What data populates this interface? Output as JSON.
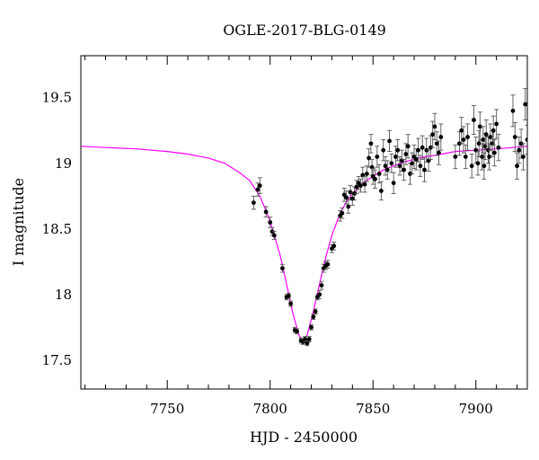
{
  "chart_data": {
    "type": "scatter",
    "title": "OGLE-2017-BLG-0149",
    "xlabel": "HJD - 2450000",
    "ylabel": "I magnitude",
    "xlim": [
      7708,
      7925
    ],
    "ylim": [
      19.82,
      17.28
    ],
    "y_inverted": true,
    "grid": false,
    "x_ticks": [
      7750,
      7800,
      7850,
      7900
    ],
    "x_tick_labels": [
      "7750",
      "7800",
      "7850",
      "7900"
    ],
    "y_ticks": [
      17.5,
      18,
      18.5,
      19,
      19.5
    ],
    "y_tick_labels": [
      "17.5",
      "18",
      "18.5",
      "19",
      "19.5"
    ],
    "colors": {
      "data": "#000000",
      "model": "#ff00ff"
    },
    "model": {
      "name": "",
      "type": "line",
      "x": [
        7708,
        7720,
        7735,
        7750,
        7760,
        7770,
        7778,
        7785,
        7790,
        7795,
        7800,
        7805,
        7808,
        7811,
        7814,
        7816,
        7818,
        7821,
        7824,
        7827,
        7830,
        7834,
        7838,
        7842,
        7846,
        7850,
        7855,
        7860,
        7865,
        7870,
        7875,
        7880,
        7890,
        7900,
        7910,
        7925
      ],
      "y": [
        19.13,
        19.12,
        19.11,
        19.09,
        19.07,
        19.04,
        19.0,
        18.93,
        18.87,
        18.75,
        18.56,
        18.29,
        18.08,
        17.86,
        17.69,
        17.64,
        17.69,
        17.87,
        18.08,
        18.28,
        18.45,
        18.62,
        18.73,
        18.8,
        18.86,
        18.9,
        18.95,
        18.98,
        19.01,
        19.03,
        19.05,
        19.06,
        19.09,
        19.1,
        19.11,
        19.13
      ]
    },
    "series": [
      {
        "name": "",
        "type": "errorbar",
        "points": [
          [
            7792,
            18.7,
            0.05
          ],
          [
            7794,
            18.8,
            0.05
          ],
          [
            7795,
            18.83,
            0.06
          ],
          [
            7798,
            18.63,
            0.04
          ],
          [
            7800,
            18.55,
            0.04
          ],
          [
            7801,
            18.48,
            0.03
          ],
          [
            7802,
            18.45,
            0.03
          ],
          [
            7806,
            18.2,
            0.03
          ],
          [
            7808,
            17.98,
            0.02
          ],
          [
            7809,
            17.99,
            0.02
          ],
          [
            7810,
            17.93,
            0.02
          ],
          [
            7812,
            17.73,
            0.02
          ],
          [
            7813,
            17.72,
            0.02
          ],
          [
            7815,
            17.65,
            0.02
          ],
          [
            7816,
            17.64,
            0.02
          ],
          [
            7817,
            17.66,
            0.02
          ],
          [
            7818,
            17.63,
            0.02
          ],
          [
            7819,
            17.66,
            0.02
          ],
          [
            7820,
            17.75,
            0.02
          ],
          [
            7821,
            17.83,
            0.02
          ],
          [
            7822,
            17.87,
            0.02
          ],
          [
            7823,
            17.98,
            0.02
          ],
          [
            7824,
            18.0,
            0.03
          ],
          [
            7825,
            18.07,
            0.03
          ],
          [
            7826,
            18.2,
            0.03
          ],
          [
            7827,
            18.22,
            0.03
          ],
          [
            7828,
            18.23,
            0.03
          ],
          [
            7830,
            18.35,
            0.03
          ],
          [
            7831,
            18.37,
            0.03
          ],
          [
            7834,
            18.6,
            0.04
          ],
          [
            7835,
            18.62,
            0.04
          ],
          [
            7836,
            18.76,
            0.05
          ],
          [
            7837,
            18.74,
            0.05
          ],
          [
            7838,
            18.67,
            0.05
          ],
          [
            7839,
            18.78,
            0.05
          ],
          [
            7840,
            18.73,
            0.05
          ],
          [
            7841,
            18.77,
            0.05
          ],
          [
            7842,
            18.82,
            0.05
          ],
          [
            7843,
            18.85,
            0.05
          ],
          [
            7844,
            18.83,
            0.05
          ],
          [
            7845,
            18.91,
            0.06
          ],
          [
            7846,
            18.84,
            0.06
          ],
          [
            7847,
            18.92,
            0.06
          ],
          [
            7848,
            19.04,
            0.07
          ],
          [
            7849,
            19.15,
            0.07
          ],
          [
            7849.5,
            18.97,
            0.06
          ],
          [
            7850,
            18.9,
            0.06
          ],
          [
            7851,
            18.88,
            0.07
          ],
          [
            7852,
            19.05,
            0.08
          ],
          [
            7853,
            18.92,
            0.07
          ],
          [
            7854,
            18.79,
            0.07
          ],
          [
            7855,
            19.1,
            0.08
          ],
          [
            7856,
            18.98,
            0.07
          ],
          [
            7857,
            18.95,
            0.07
          ],
          [
            7858,
            19.17,
            0.08
          ],
          [
            7859,
            19.0,
            0.07
          ],
          [
            7860,
            18.85,
            0.08
          ],
          [
            7861,
            19.05,
            0.08
          ],
          [
            7862,
            19.1,
            0.08
          ],
          [
            7863,
            18.98,
            0.07
          ],
          [
            7864,
            19.02,
            0.08
          ],
          [
            7865,
            18.95,
            0.08
          ],
          [
            7866,
            19.07,
            0.08
          ],
          [
            7867,
            19.13,
            0.09
          ],
          [
            7868,
            18.92,
            0.08
          ],
          [
            7869,
            19.0,
            0.08
          ],
          [
            7870,
            19.05,
            0.09
          ],
          [
            7871,
            19.03,
            0.08
          ],
          [
            7872,
            19.1,
            0.09
          ],
          [
            7873,
            18.98,
            0.08
          ],
          [
            7874,
            19.12,
            0.09
          ],
          [
            7875,
            18.95,
            0.09
          ],
          [
            7876,
            19.1,
            0.09
          ],
          [
            7877,
            19.02,
            0.08
          ],
          [
            7878,
            19.12,
            0.09
          ],
          [
            7879,
            19.22,
            0.1
          ],
          [
            7880,
            19.28,
            0.1
          ],
          [
            7881,
            19.15,
            0.09
          ],
          [
            7882,
            19.08,
            0.09
          ],
          [
            7883,
            19.2,
            0.1
          ],
          [
            7890,
            19.05,
            0.09
          ],
          [
            7892,
            19.15,
            0.09
          ],
          [
            7893,
            19.25,
            0.1
          ],
          [
            7894,
            19.18,
            0.1
          ],
          [
            7895,
            19.05,
            0.09
          ],
          [
            7896,
            19.2,
            0.1
          ],
          [
            7898,
            18.98,
            0.09
          ],
          [
            7899,
            19.33,
            0.11
          ],
          [
            7900,
            19.1,
            0.1
          ],
          [
            7901,
            19.0,
            0.09
          ],
          [
            7901.5,
            19.15,
            0.1
          ],
          [
            7902,
            19.28,
            0.11
          ],
          [
            7903,
            19.05,
            0.1
          ],
          [
            7903.5,
            19.18,
            0.1
          ],
          [
            7904,
            18.98,
            0.1
          ],
          [
            7904.5,
            19.13,
            0.1
          ],
          [
            7905,
            19.22,
            0.11
          ],
          [
            7906,
            19.1,
            0.1
          ],
          [
            7906.5,
            19.05,
            0.1
          ],
          [
            7907,
            19.2,
            0.1
          ],
          [
            7908,
            19.15,
            0.1
          ],
          [
            7908.5,
            19.25,
            0.11
          ],
          [
            7909,
            19.08,
            0.1
          ],
          [
            7910,
            19.3,
            0.11
          ],
          [
            7911,
            19.12,
            0.1
          ],
          [
            7918,
            19.4,
            0.12
          ],
          [
            7919,
            19.2,
            0.11
          ],
          [
            7920,
            18.98,
            0.1
          ],
          [
            7921,
            19.1,
            0.1
          ],
          [
            7922,
            19.15,
            0.11
          ],
          [
            7923,
            19.05,
            0.1
          ],
          [
            7924,
            19.45,
            0.12
          ],
          [
            7925,
            19.18,
            0.11
          ]
        ]
      }
    ]
  }
}
